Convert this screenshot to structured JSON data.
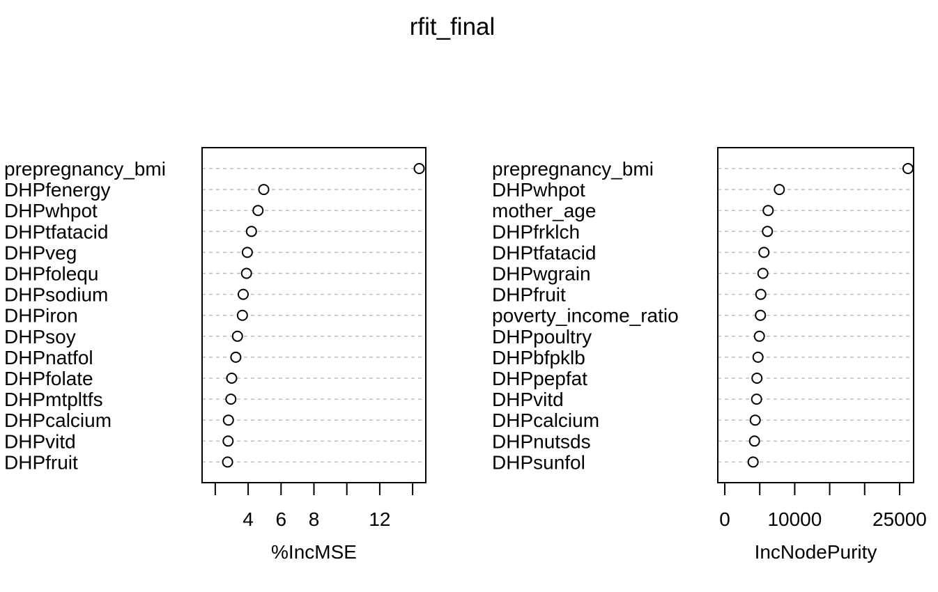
{
  "chart_data": {
    "title": "rfit_final",
    "panels": [
      {
        "type": "scatter",
        "xlabel": "%IncMSE",
        "xlim": [
          1.2,
          14.8
        ],
        "xticks": [
          2,
          4,
          6,
          8,
          10,
          12,
          14
        ],
        "xtick_labels": [
          "",
          "4",
          "6",
          "8",
          "",
          "12",
          ""
        ],
        "variables": [
          "prepregnancy_bmi",
          "DHPfenergy",
          "DHPwhpot",
          "DHPtfatacid",
          "DHPveg",
          "DHPfolequ",
          "DHPsodium",
          "DHPiron",
          "DHPsoy",
          "DHPnatfol",
          "DHPfolate",
          "DHPmtpltfs",
          "DHPcalcium",
          "DHPvitd",
          "DHPfruit"
        ],
        "values": [
          14.4,
          4.95,
          4.6,
          4.2,
          3.95,
          3.9,
          3.7,
          3.65,
          3.35,
          3.25,
          3.0,
          2.95,
          2.8,
          2.78,
          2.75
        ]
      },
      {
        "type": "scatter",
        "xlabel": "IncNodePurity",
        "xlim": [
          -1000,
          27000
        ],
        "xticks": [
          0,
          5000,
          10000,
          15000,
          20000,
          25000
        ],
        "xtick_labels": [
          "0",
          "",
          "10000",
          "",
          "",
          "25000"
        ],
        "variables": [
          "prepregnancy_bmi",
          "DHPwhpot",
          "mother_age",
          "DHPfrklch",
          "DHPtfatacid",
          "DHPwgrain",
          "DHPfruit",
          "poverty_income_ratio",
          "DHPpoultry",
          "DHPbfpklb",
          "DHPpepfat",
          "DHPvitd",
          "DHPcalcium",
          "DHPnutsds",
          "DHPsunfol"
        ],
        "values": [
          26200,
          7800,
          6200,
          6100,
          5600,
          5450,
          5150,
          5100,
          4950,
          4750,
          4600,
          4550,
          4350,
          4250,
          4050
        ]
      }
    ]
  }
}
